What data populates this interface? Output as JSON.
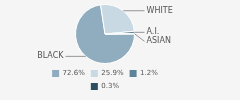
{
  "chart_data": {
    "type": "pie",
    "categories": [
      "BLACK",
      "WHITE",
      "A.I.",
      "ASIAN"
    ],
    "values": [
      72.6,
      25.9,
      1.2,
      0.3
    ],
    "value_labels": [
      "72.6%",
      "25.9%",
      "1.2%",
      "0.3%"
    ],
    "colors": [
      "#8fadbf",
      "#c8d9e3",
      "#5e8499",
      "#2d4f63"
    ],
    "legend": "bottom"
  }
}
